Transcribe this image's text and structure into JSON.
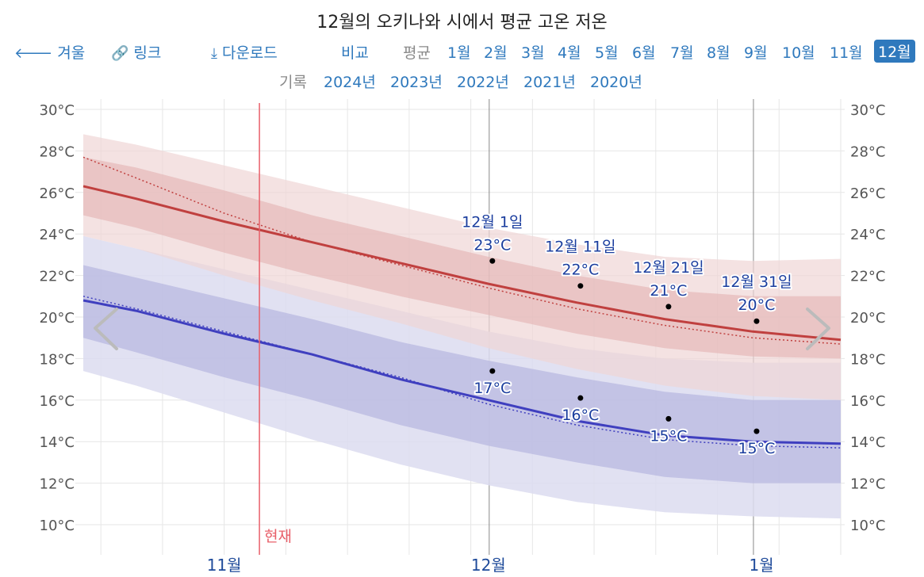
{
  "header": {
    "title": "12월의 오키나와 시에서 평균 고온 저온",
    "nav_back": "겨울",
    "nav_link": "링크",
    "nav_download": "다운로드",
    "nav_compare": "비교",
    "avg_label": "평균",
    "months": [
      "1월",
      "2월",
      "3월",
      "4월",
      "5월",
      "6월",
      "7월",
      "8월",
      "9월",
      "10월",
      "11월",
      "12월"
    ],
    "active_month": "12월",
    "record_label": "기록",
    "years": [
      "2024년",
      "2023년",
      "2022년",
      "2021년",
      "2020년"
    ]
  },
  "colors": {
    "high_line": "#c0403f",
    "low_line": "#3f3fbf",
    "high_band_outer": "#f0d6d6",
    "high_band_inner": "#e3b3b3",
    "low_band_outer": "#dcdcf0",
    "low_band_inner": "#b8b8e0",
    "now_line": "#e8606a",
    "link": "#2f79bd"
  },
  "chart_data": {
    "type": "area",
    "y_unit": "°C",
    "ylim": [
      9,
      31
    ],
    "y_ticks": [
      10,
      12,
      14,
      16,
      18,
      20,
      22,
      24,
      26,
      28,
      30
    ],
    "y_tick_labels": [
      "10°C",
      "12°C",
      "14°C",
      "16°C",
      "18°C",
      "20°C",
      "22°C",
      "24°C",
      "26°C",
      "28°C",
      "30°C"
    ],
    "x_domain_days": [
      -46,
      40
    ],
    "x_month_labels": [
      {
        "label": "11월",
        "day": -30
      },
      {
        "label": "12월",
        "day": 0
      },
      {
        "label": "1월",
        "day": 31
      }
    ],
    "now_label": "현재",
    "now_day": -26,
    "x_days": [
      -46,
      -40,
      -30,
      -20,
      -10,
      0,
      10,
      20,
      30,
      40
    ],
    "series": [
      {
        "name": "평균 고온",
        "values": [
          26.3,
          25.7,
          24.6,
          23.6,
          22.6,
          21.6,
          20.7,
          19.9,
          19.3,
          18.9
        ]
      },
      {
        "name": "평균 저온",
        "values": [
          20.8,
          20.3,
          19.2,
          18.2,
          17.0,
          16.0,
          15.0,
          14.3,
          14.0,
          13.9
        ]
      }
    ],
    "high_2024": [
      27.7,
      26.7,
      25.0,
      23.6,
      22.5,
      21.4,
      20.4,
      19.6,
      19.0,
      18.7
    ],
    "low_2024": [
      21.0,
      20.4,
      19.3,
      18.2,
      17.1,
      15.8,
      14.8,
      14.1,
      13.8,
      13.7
    ],
    "high_p10_p90": {
      "lo": [
        24.9,
        24.3,
        23.1,
        22.0,
        21.0,
        20.1,
        19.2,
        18.5,
        18.1,
        18.0
      ],
      "hi": [
        27.7,
        27.2,
        26.1,
        24.9,
        23.9,
        22.9,
        22.0,
        21.3,
        21.0,
        21.0
      ]
    },
    "high_p0_p100": {
      "lo": [
        23.9,
        23.3,
        22.0,
        20.8,
        19.7,
        18.5,
        17.5,
        16.7,
        16.2,
        16.0
      ],
      "hi": [
        28.8,
        28.3,
        27.3,
        26.3,
        25.3,
        24.3,
        23.5,
        22.9,
        22.7,
        22.8
      ]
    },
    "low_p10_p90": {
      "lo": [
        19.0,
        18.3,
        17.1,
        16.0,
        14.8,
        13.8,
        13.0,
        12.3,
        12.0,
        12.0
      ],
      "hi": [
        22.5,
        21.9,
        20.9,
        19.9,
        18.8,
        17.9,
        17.1,
        16.4,
        16.0,
        16.0
      ]
    },
    "low_p0_p100": {
      "lo": [
        17.4,
        16.7,
        15.4,
        14.1,
        12.9,
        11.9,
        11.1,
        10.6,
        10.4,
        10.3
      ],
      "hi": [
        23.9,
        23.3,
        22.3,
        21.3,
        20.3,
        19.3,
        18.5,
        18.0,
        17.8,
        17.8
      ]
    },
    "annotations": [
      {
        "date": "12월 1일",
        "high": "23°C",
        "low": "17°C",
        "day": 0,
        "high_value": 22.7,
        "low_value": 17.4
      },
      {
        "date": "12월 11일",
        "high": "22°C",
        "low": "16°C",
        "day": 10,
        "high_value": 21.5,
        "low_value": 16.1
      },
      {
        "date": "12월 21일",
        "high": "21°C",
        "low": "15°C",
        "day": 20,
        "high_value": 20.5,
        "low_value": 15.1
      },
      {
        "date": "12월 31일",
        "high": "20°C",
        "low": "15°C",
        "day": 30,
        "high_value": 19.8,
        "low_value": 14.5
      }
    ]
  }
}
